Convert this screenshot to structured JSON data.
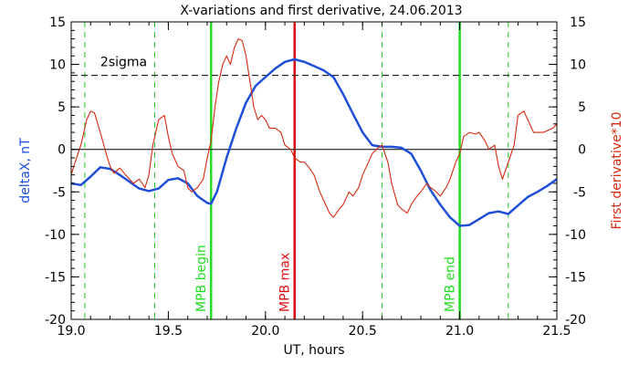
{
  "chart_data": {
    "type": "line",
    "title": "X-variations and first derivative, 24.06.2013",
    "xlabel": "UT, hours",
    "ylabel_left": "deltaX, nT",
    "ylabel_right": "First derivative*10",
    "xlim": [
      19.0,
      21.5
    ],
    "ylim": [
      -20,
      15
    ],
    "x_ticks": [
      "19.0",
      "19.5",
      "20.0",
      "20.5",
      "21.0",
      "21.5"
    ],
    "y_ticks": [
      "15",
      "10",
      "5",
      "0",
      "-5",
      "-10",
      "-15",
      "-20"
    ],
    "colors": {
      "deltaX": "#1f4fd8",
      "derivative": "#d42a10",
      "mpb_edge": "#22dd22",
      "mpb_max": "#dd1111",
      "dashed_green": "#22cc22"
    },
    "series": [
      {
        "name": "deltaX, nT",
        "axis": "left",
        "x": [
          19.0,
          19.05,
          19.1,
          19.15,
          19.2,
          19.25,
          19.3,
          19.35,
          19.4,
          19.45,
          19.5,
          19.55,
          19.6,
          19.65,
          19.7,
          19.72,
          19.75,
          19.8,
          19.85,
          19.9,
          19.95,
          20.0,
          20.05,
          20.1,
          20.15,
          20.2,
          20.25,
          20.3,
          20.35,
          20.4,
          20.45,
          20.5,
          20.55,
          20.6,
          20.65,
          20.7,
          20.75,
          20.8,
          20.85,
          20.9,
          20.95,
          21.0,
          21.05,
          21.1,
          21.15,
          21.2,
          21.25,
          21.3,
          21.35,
          21.4,
          21.45,
          21.5
        ],
        "y": [
          -4.0,
          -4.2,
          -3.2,
          -2.1,
          -2.3,
          -3.0,
          -3.8,
          -4.6,
          -4.9,
          -4.6,
          -3.6,
          -3.4,
          -4.0,
          -5.5,
          -6.3,
          -6.4,
          -5.0,
          -1.0,
          2.5,
          5.5,
          7.5,
          8.5,
          9.5,
          10.3,
          10.6,
          10.3,
          9.8,
          9.3,
          8.5,
          6.5,
          4.2,
          2.0,
          0.5,
          0.3,
          0.3,
          0.2,
          -0.5,
          -2.5,
          -4.8,
          -6.5,
          -8.0,
          -9.0,
          -8.9,
          -8.2,
          -7.5,
          -7.3,
          -7.6,
          -6.6,
          -5.6,
          -5.0,
          -4.3,
          -3.5
        ]
      },
      {
        "name": "First derivative*10",
        "axis": "right",
        "x": [
          19.0,
          19.02,
          19.05,
          19.08,
          19.1,
          19.12,
          19.15,
          19.18,
          19.2,
          19.22,
          19.25,
          19.28,
          19.3,
          19.32,
          19.35,
          19.38,
          19.4,
          19.42,
          19.45,
          19.48,
          19.5,
          19.52,
          19.55,
          19.58,
          19.6,
          19.62,
          19.65,
          19.68,
          19.7,
          19.72,
          19.74,
          19.76,
          19.78,
          19.8,
          19.82,
          19.84,
          19.86,
          19.88,
          19.9,
          19.92,
          19.94,
          19.96,
          19.98,
          20.0,
          20.02,
          20.05,
          20.08,
          20.1,
          20.13,
          20.15,
          20.18,
          20.2,
          20.22,
          20.25,
          20.28,
          20.3,
          20.33,
          20.35,
          20.38,
          20.4,
          20.43,
          20.45,
          20.48,
          20.5,
          20.53,
          20.55,
          20.58,
          20.6,
          20.63,
          20.65,
          20.68,
          20.7,
          20.73,
          20.75,
          20.78,
          20.8,
          20.83,
          20.85,
          20.88,
          20.9,
          20.93,
          20.95,
          20.98,
          21.0,
          21.02,
          21.05,
          21.08,
          21.1,
          21.13,
          21.15,
          21.18,
          21.2,
          21.22,
          21.25,
          21.28,
          21.3,
          21.33,
          21.35,
          21.38,
          21.4,
          21.43,
          21.45,
          21.48,
          21.5
        ],
        "y": [
          -3.0,
          -1.5,
          0.5,
          3.5,
          4.5,
          4.3,
          2.0,
          -0.5,
          -2.0,
          -2.8,
          -2.2,
          -3.0,
          -3.5,
          -4.0,
          -3.5,
          -4.5,
          -3.0,
          0.5,
          3.5,
          4.0,
          1.5,
          -0.5,
          -2.0,
          -2.5,
          -4.5,
          -5.0,
          -4.5,
          -3.5,
          -1.0,
          1.0,
          5.0,
          8.0,
          10.0,
          11.0,
          10.0,
          12.0,
          13.0,
          12.8,
          11.0,
          8.0,
          5.0,
          3.5,
          4.0,
          3.5,
          2.5,
          2.5,
          2.0,
          0.5,
          0.0,
          -1.0,
          -1.5,
          -1.5,
          -2.0,
          -3.0,
          -5.0,
          -6.0,
          -7.5,
          -8.0,
          -7.0,
          -6.5,
          -5.0,
          -5.5,
          -4.5,
          -3.0,
          -1.5,
          -0.5,
          0.2,
          0.5,
          -1.5,
          -4.0,
          -6.5,
          -7.0,
          -7.5,
          -6.5,
          -5.5,
          -5.0,
          -4.0,
          -4.5,
          -5.0,
          -5.5,
          -4.5,
          -3.5,
          -1.5,
          -0.5,
          1.5,
          2.0,
          1.8,
          2.0,
          1.0,
          0.0,
          0.5,
          -2.0,
          -3.5,
          -1.5,
          0.5,
          4.0,
          4.5,
          3.5,
          2.0,
          2.0,
          2.0,
          2.2,
          2.5,
          3.0
        ]
      }
    ],
    "hlines": [
      {
        "y": 0,
        "style": "solid"
      },
      {
        "y": 8.7,
        "style": "dashed",
        "label": "2sigma"
      }
    ],
    "vlines": [
      {
        "x": 19.07,
        "style": "dashed",
        "color_key": "dashed_green"
      },
      {
        "x": 19.43,
        "style": "dashed",
        "color_key": "dashed_green"
      },
      {
        "x": 19.72,
        "style": "solid",
        "color_key": "mpb_edge",
        "label": "MPB begin"
      },
      {
        "x": 20.15,
        "style": "solid",
        "color_key": "mpb_max",
        "label": "MPB max"
      },
      {
        "x": 20.6,
        "style": "dashed",
        "color_key": "dashed_green"
      },
      {
        "x": 21.0,
        "style": "solid",
        "color_key": "mpb_edge",
        "label": "MPB end"
      },
      {
        "x": 21.25,
        "style": "dashed",
        "color_key": "dashed_green"
      }
    ],
    "grid": false,
    "legend": "none"
  }
}
